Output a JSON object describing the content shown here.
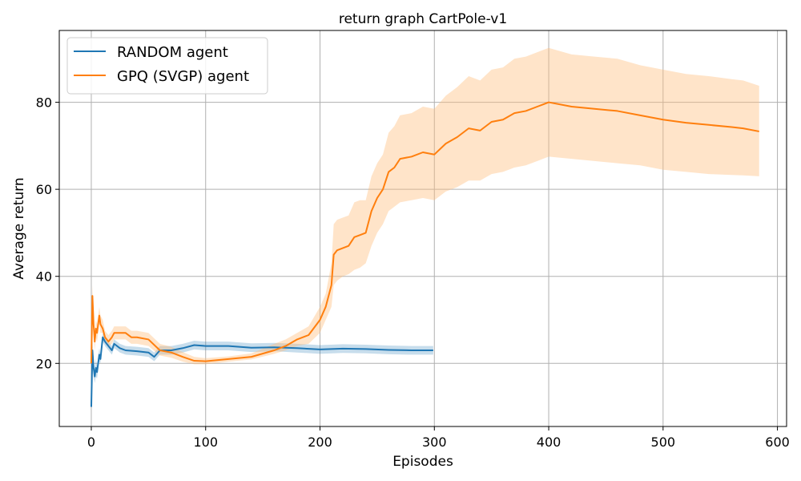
{
  "chart_data": {
    "type": "line",
    "title": "return graph CartPole-v1",
    "xlabel": "Episodes",
    "ylabel": "Average return",
    "xlim": [
      -28,
      608
    ],
    "ylim": [
      5.5,
      96.5
    ],
    "xticks": [
      0,
      100,
      200,
      300,
      400,
      500,
      600
    ],
    "yticks": [
      20,
      40,
      60,
      80
    ],
    "grid": true,
    "legend_position": "top-left",
    "series": [
      {
        "name": "RANDOM agent",
        "color": "#1f77b4",
        "band_color": "#1f77b4",
        "x": [
          0,
          1,
          2,
          3,
          4,
          5,
          6,
          7,
          8,
          10,
          12,
          15,
          18,
          20,
          25,
          30,
          40,
          50,
          55,
          60,
          70,
          80,
          90,
          100,
          120,
          140,
          160,
          180,
          200,
          220,
          240,
          260,
          280,
          299
        ],
        "y": [
          10,
          23,
          19,
          17,
          19,
          18,
          20,
          22,
          21,
          26,
          25,
          24,
          23,
          24.5,
          23.5,
          23,
          22.8,
          22.5,
          21.5,
          23,
          23,
          23.5,
          24.2,
          24,
          24,
          23.6,
          23.7,
          23.5,
          23.2,
          23.4,
          23.3,
          23.1,
          23,
          23
        ],
        "lower": [
          10,
          21,
          17,
          15.5,
          17,
          16.5,
          18.5,
          20.5,
          20,
          25,
          24,
          23,
          22,
          23.5,
          22.5,
          22,
          21.8,
          21.5,
          20.5,
          22,
          22,
          22.5,
          23.2,
          23,
          23,
          22.6,
          22.8,
          22.5,
          22.2,
          22.4,
          22.3,
          22.1,
          22,
          22
        ],
        "upper": [
          10,
          25,
          21,
          18.5,
          21,
          19.5,
          21.5,
          23.5,
          22,
          27,
          26,
          25,
          24,
          25.5,
          24.5,
          24,
          23.8,
          23.5,
          22.5,
          24,
          24,
          24.5,
          25.2,
          25,
          25,
          24.6,
          24.7,
          24.5,
          24.2,
          24.4,
          24.3,
          24.1,
          24,
          24
        ]
      },
      {
        "name": "GPQ (SVGP) agent",
        "color": "#ff7f0e",
        "band_color": "#ffbb78",
        "x": [
          0,
          1,
          2,
          3,
          4,
          5,
          6,
          7,
          8,
          10,
          12,
          15,
          18,
          20,
          25,
          30,
          35,
          40,
          50,
          60,
          70,
          80,
          90,
          100,
          120,
          140,
          160,
          170,
          180,
          190,
          200,
          205,
          210,
          212,
          215,
          220,
          225,
          230,
          235,
          240,
          245,
          250,
          255,
          260,
          265,
          270,
          280,
          290,
          300,
          310,
          320,
          330,
          340,
          350,
          360,
          370,
          380,
          390,
          395,
          400,
          420,
          440,
          460,
          480,
          500,
          520,
          540,
          560,
          570,
          584
        ],
        "y": [
          20,
          35.5,
          29,
          25,
          28,
          27,
          29,
          31,
          29,
          28,
          26,
          25,
          26,
          27,
          27,
          27,
          26,
          26,
          25.5,
          23,
          22.5,
          21.5,
          20.6,
          20.5,
          21,
          21.5,
          23,
          24,
          25.5,
          26.5,
          30,
          33,
          38,
          45,
          46,
          46.5,
          47,
          49,
          49.5,
          50,
          55,
          58,
          60,
          64,
          65,
          67,
          67.5,
          68.5,
          68,
          70.5,
          72,
          74,
          73.5,
          75.5,
          76,
          77.5,
          78,
          79,
          79.5,
          80,
          79,
          78.5,
          78,
          77,
          76,
          75.3,
          74.8,
          74.3,
          74,
          73.3
        ],
        "lower": [
          18,
          33,
          27,
          23,
          26,
          25,
          27,
          29,
          27,
          27,
          25,
          24,
          24.5,
          25.5,
          25.5,
          25.5,
          24.5,
          24.5,
          24,
          21.8,
          21.3,
          20.4,
          19.8,
          19.8,
          20.4,
          20.9,
          22.2,
          23,
          24,
          24.5,
          27,
          30,
          33,
          38,
          39,
          40,
          40.5,
          41.5,
          42,
          43,
          47,
          50,
          52,
          55,
          56,
          57,
          57.5,
          58,
          57.5,
          59.5,
          60.5,
          62,
          62,
          63.5,
          64,
          65,
          65.5,
          66.5,
          67,
          67.5,
          67,
          66.5,
          66,
          65.5,
          64.5,
          64,
          63.5,
          63.3,
          63.2,
          63
        ],
        "upper": [
          22,
          38,
          31,
          27,
          30,
          29,
          31,
          33,
          31,
          30,
          27.5,
          26.5,
          27.5,
          28.5,
          28.5,
          28.5,
          27.5,
          27.5,
          27,
          24.5,
          23.8,
          22.6,
          21.5,
          21.2,
          21.6,
          22.3,
          24.5,
          25.5,
          27,
          28.5,
          33,
          36,
          43,
          52,
          53,
          53.5,
          54,
          57,
          57.5,
          57.5,
          63,
          66,
          68,
          73,
          74.5,
          77,
          77.5,
          79,
          78.5,
          81.5,
          83.5,
          86,
          85,
          87.5,
          88,
          90,
          90.5,
          91.5,
          92,
          92.5,
          91,
          90.5,
          90,
          88.5,
          87.5,
          86.5,
          86,
          85.3,
          85,
          83.8
        ]
      }
    ]
  }
}
